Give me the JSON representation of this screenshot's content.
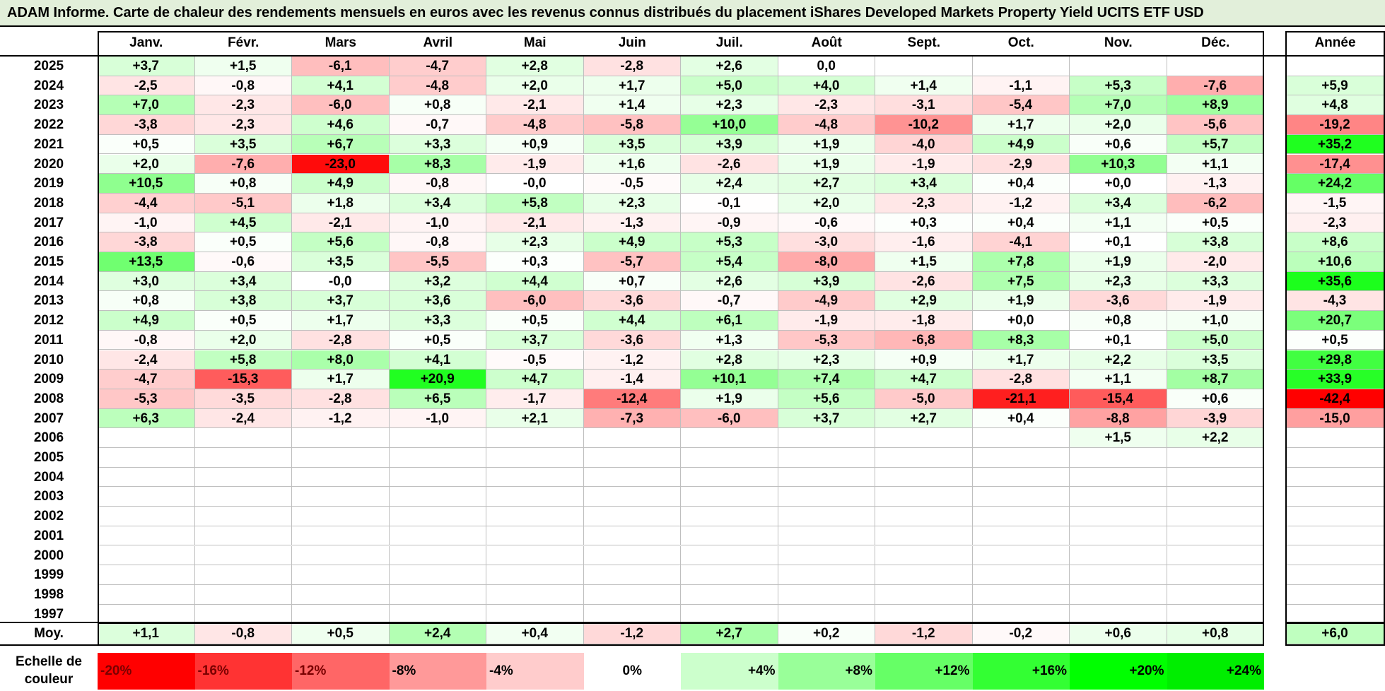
{
  "title": "ADAM Informe. Carte de chaleur des rendements mensuels en euros avec les revenus connus distribués du placement iShares Developed Markets Property Yield UCITS ETF USD",
  "chart_data": {
    "type": "heatmap",
    "columns": [
      "Janv.",
      "Févr.",
      "Mars",
      "Avril",
      "Mai",
      "Juin",
      "Juil.",
      "Août",
      "Sept.",
      "Oct.",
      "Nov.",
      "Déc."
    ],
    "annual_header": "Année",
    "rows": [
      {
        "year": "2025",
        "months": [
          "+3,7",
          "+1,5",
          "-6,1",
          "-4,7",
          "+2,8",
          "-2,8",
          "+2,6",
          "0,0",
          "",
          "",
          "",
          ""
        ],
        "annual": ""
      },
      {
        "year": "2024",
        "months": [
          "-2,5",
          "-0,8",
          "+4,1",
          "-4,8",
          "+2,0",
          "+1,7",
          "+5,0",
          "+4,0",
          "+1,4",
          "-1,1",
          "+5,3",
          "-7,6"
        ],
        "annual": "+5,9"
      },
      {
        "year": "2023",
        "months": [
          "+7,0",
          "-2,3",
          "-6,0",
          "+0,8",
          "-2,1",
          "+1,4",
          "+2,3",
          "-2,3",
          "-3,1",
          "-5,4",
          "+7,0",
          "+8,9"
        ],
        "annual": "+4,8"
      },
      {
        "year": "2022",
        "months": [
          "-3,8",
          "-2,3",
          "+4,6",
          "-0,7",
          "-4,8",
          "-5,8",
          "+10,0",
          "-4,8",
          "-10,2",
          "+1,7",
          "+2,0",
          "-5,6"
        ],
        "annual": "-19,2"
      },
      {
        "year": "2021",
        "months": [
          "+0,5",
          "+3,5",
          "+6,7",
          "+3,3",
          "+0,9",
          "+3,5",
          "+3,9",
          "+1,9",
          "-4,0",
          "+4,9",
          "+0,6",
          "+5,7"
        ],
        "annual": "+35,2"
      },
      {
        "year": "2020",
        "months": [
          "+2,0",
          "-7,6",
          "-23,0",
          "+8,3",
          "-1,9",
          "+1,6",
          "-2,6",
          "+1,9",
          "-1,9",
          "-2,9",
          "+10,3",
          "+1,1"
        ],
        "annual": "-17,4"
      },
      {
        "year": "2019",
        "months": [
          "+10,5",
          "+0,8",
          "+4,9",
          "-0,8",
          "-0,0",
          "-0,5",
          "+2,4",
          "+2,7",
          "+3,4",
          "+0,4",
          "+0,0",
          "-1,3"
        ],
        "annual": "+24,2"
      },
      {
        "year": "2018",
        "months": [
          "-4,4",
          "-5,1",
          "+1,8",
          "+3,4",
          "+5,8",
          "+2,3",
          "-0,1",
          "+2,0",
          "-2,3",
          "-1,2",
          "+3,4",
          "-6,2"
        ],
        "annual": "-1,5"
      },
      {
        "year": "2017",
        "months": [
          "-1,0",
          "+4,5",
          "-2,1",
          "-1,0",
          "-2,1",
          "-1,3",
          "-0,9",
          "-0,6",
          "+0,3",
          "+0,4",
          "+1,1",
          "+0,5"
        ],
        "annual": "-2,3"
      },
      {
        "year": "2016",
        "months": [
          "-3,8",
          "+0,5",
          "+5,6",
          "-0,8",
          "+2,3",
          "+4,9",
          "+5,3",
          "-3,0",
          "-1,6",
          "-4,1",
          "+0,1",
          "+3,8"
        ],
        "annual": "+8,6"
      },
      {
        "year": "2015",
        "months": [
          "+13,5",
          "-0,6",
          "+3,5",
          "-5,5",
          "+0,3",
          "-5,7",
          "+5,4",
          "-8,0",
          "+1,5",
          "+7,8",
          "+1,9",
          "-2,0"
        ],
        "annual": "+10,6"
      },
      {
        "year": "2014",
        "months": [
          "+3,0",
          "+3,4",
          "-0,0",
          "+3,2",
          "+4,4",
          "+0,7",
          "+2,6",
          "+3,9",
          "-2,6",
          "+7,5",
          "+2,3",
          "+3,3"
        ],
        "annual": "+35,6"
      },
      {
        "year": "2013",
        "months": [
          "+0,8",
          "+3,8",
          "+3,7",
          "+3,6",
          "-6,0",
          "-3,6",
          "-0,7",
          "-4,9",
          "+2,9",
          "+1,9",
          "-3,6",
          "-1,9"
        ],
        "annual": "-4,3"
      },
      {
        "year": "2012",
        "months": [
          "+4,9",
          "+0,5",
          "+1,7",
          "+3,3",
          "+0,5",
          "+4,4",
          "+6,1",
          "-1,9",
          "-1,8",
          "+0,0",
          "+0,8",
          "+1,0"
        ],
        "annual": "+20,7"
      },
      {
        "year": "2011",
        "months": [
          "-0,8",
          "+2,0",
          "-2,8",
          "+0,5",
          "+3,7",
          "-3,6",
          "+1,3",
          "-5,3",
          "-6,8",
          "+8,3",
          "+0,1",
          "+5,0"
        ],
        "annual": "+0,5"
      },
      {
        "year": "2010",
        "months": [
          "-2,4",
          "+5,8",
          "+8,0",
          "+4,1",
          "-0,5",
          "-1,2",
          "+2,8",
          "+2,3",
          "+0,9",
          "+1,7",
          "+2,2",
          "+3,5"
        ],
        "annual": "+29,8"
      },
      {
        "year": "2009",
        "months": [
          "-4,7",
          "-15,3",
          "+1,7",
          "+20,9",
          "+4,7",
          "-1,4",
          "+10,1",
          "+7,4",
          "+4,7",
          "-2,8",
          "+1,1",
          "+8,7"
        ],
        "annual": "+33,9"
      },
      {
        "year": "2008",
        "months": [
          "-5,3",
          "-3,5",
          "-2,8",
          "+6,5",
          "-1,7",
          "-12,4",
          "+1,9",
          "+5,6",
          "-5,0",
          "-21,1",
          "-15,4",
          "+0,6"
        ],
        "annual": "-42,4"
      },
      {
        "year": "2007",
        "months": [
          "+6,3",
          "-2,4",
          "-1,2",
          "-1,0",
          "+2,1",
          "-7,3",
          "-6,0",
          "+3,7",
          "+2,7",
          "+0,4",
          "-8,8",
          "-3,9"
        ],
        "annual": "-15,0"
      },
      {
        "year": "2006",
        "months": [
          "",
          "",
          "",
          "",
          "",
          "",
          "",
          "",
          "",
          "",
          "+1,5",
          "+2,2"
        ],
        "annual": ""
      },
      {
        "year": "2005",
        "months": [
          "",
          "",
          "",
          "",
          "",
          "",
          "",
          "",
          "",
          "",
          "",
          ""
        ],
        "annual": ""
      },
      {
        "year": "2004",
        "months": [
          "",
          "",
          "",
          "",
          "",
          "",
          "",
          "",
          "",
          "",
          "",
          ""
        ],
        "annual": ""
      },
      {
        "year": "2003",
        "months": [
          "",
          "",
          "",
          "",
          "",
          "",
          "",
          "",
          "",
          "",
          "",
          ""
        ],
        "annual": ""
      },
      {
        "year": "2002",
        "months": [
          "",
          "",
          "",
          "",
          "",
          "",
          "",
          "",
          "",
          "",
          "",
          ""
        ],
        "annual": ""
      },
      {
        "year": "2001",
        "months": [
          "",
          "",
          "",
          "",
          "",
          "",
          "",
          "",
          "",
          "",
          "",
          ""
        ],
        "annual": ""
      },
      {
        "year": "2000",
        "months": [
          "",
          "",
          "",
          "",
          "",
          "",
          "",
          "",
          "",
          "",
          "",
          ""
        ],
        "annual": ""
      },
      {
        "year": "1999",
        "months": [
          "",
          "",
          "",
          "",
          "",
          "",
          "",
          "",
          "",
          "",
          "",
          ""
        ],
        "annual": ""
      },
      {
        "year": "1998",
        "months": [
          "",
          "",
          "",
          "",
          "",
          "",
          "",
          "",
          "",
          "",
          "",
          ""
        ],
        "annual": ""
      },
      {
        "year": "1997",
        "months": [
          "",
          "",
          "",
          "",
          "",
          "",
          "",
          "",
          "",
          "",
          "",
          ""
        ],
        "annual": ""
      }
    ],
    "average_row": {
      "label": "Moy.",
      "months": [
        "+1,1",
        "-0,8",
        "+0,5",
        "+2,4",
        "+0,4",
        "-1,2",
        "+2,7",
        "+0,2",
        "-1,2",
        "-0,2",
        "+0,6",
        "+0,8"
      ],
      "annual": "+6,0"
    },
    "color_scale": {
      "label": "Echelle de couleur",
      "stops": [
        {
          "label": "-20%",
          "color": "#ff0000"
        },
        {
          "label": "-16%",
          "color": "#ff3333"
        },
        {
          "label": "-12%",
          "color": "#ff6666"
        },
        {
          "label": "-8%",
          "color": "#ff9999"
        },
        {
          "label": "-4%",
          "color": "#ffcccc"
        },
        {
          "label": "0%",
          "color": "#ffffff"
        },
        {
          "label": "+4%",
          "color": "#ccffcc"
        },
        {
          "label": "+8%",
          "color": "#99ff99"
        },
        {
          "label": "+12%",
          "color": "#66ff66"
        },
        {
          "label": "+16%",
          "color": "#33ff33"
        },
        {
          "label": "+20%",
          "color": "#00ff00"
        },
        {
          "label": "+24%",
          "color": "#00ee00"
        }
      ]
    },
    "monthly_color_range": [
      -24,
      24
    ],
    "annual_color_range": [
      -40,
      40
    ]
  }
}
